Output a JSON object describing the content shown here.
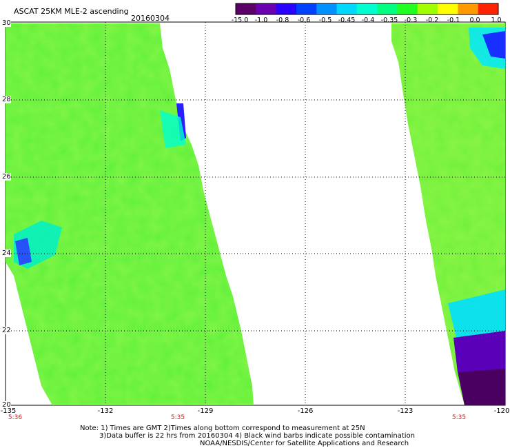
{
  "header": {
    "product": "ASCAT 25KM MLE-2 ascending",
    "date": "20160304"
  },
  "colorbar": {
    "labels": [
      "-15.0",
      "-1.0",
      "-0.8",
      "-0.6",
      "-0.5",
      "-0.45",
      "-0.4",
      "-0.35",
      "-0.3",
      "-0.2",
      "-0.1",
      "0.0",
      "1.0"
    ],
    "colors": [
      "#5a0066",
      "#6a00b0",
      "#2a00ff",
      "#0040ff",
      "#0090ff",
      "#00d8ff",
      "#00ffd0",
      "#00ff80",
      "#20ff20",
      "#a0ff00",
      "#ffff00",
      "#ff9900",
      "#ff2200"
    ]
  },
  "map": {
    "lat_labels": [
      "30",
      "28",
      "26",
      "24",
      "22",
      "20"
    ],
    "lon_labels": [
      "-135",
      "-132",
      "-129",
      "-126",
      "-123",
      "-120"
    ],
    "time_labels": [
      "5:36",
      "5:35",
      "5:35"
    ]
  },
  "footer": {
    "line1": "Note: 1) Times are GMT 2)Times along bottom correspond to measurement at 25N",
    "line2": "3)Data buffer is 22 hrs from 20160304 4) Black wind barbs indicate possible contamination",
    "line3": "NOAA/NESDIS/Center for Satellite Applications and Research"
  }
}
